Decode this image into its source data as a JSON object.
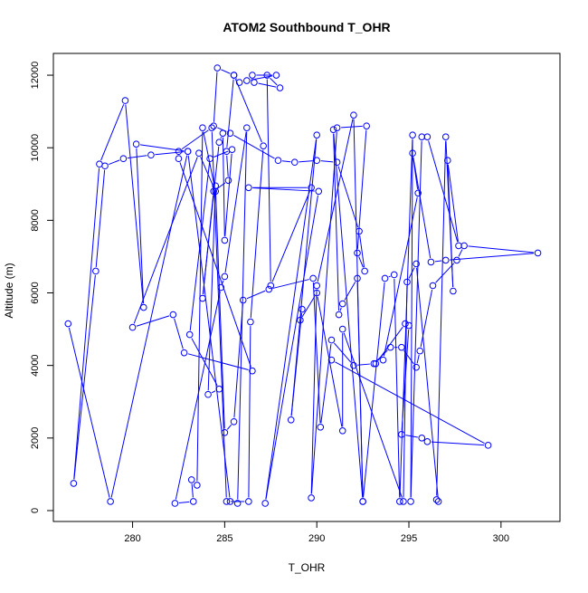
{
  "colors": {
    "series": "#0000ff",
    "axis": "#000000",
    "background": "#ffffff"
  },
  "chart_data": {
    "type": "line",
    "title": "ATOM2 Southbound T_OHR",
    "xlabel": "T_OHR",
    "ylabel": "Altitude (m)",
    "xlim": [
      275.7,
      303.2
    ],
    "ylim": [
      -300,
      12600
    ],
    "xticks": [
      280,
      285,
      290,
      295,
      300
    ],
    "yticks": [
      0,
      2000,
      4000,
      6000,
      8000,
      10000,
      12000
    ],
    "xtick_labels": [
      "280",
      "285",
      "290",
      "295",
      "300"
    ],
    "ytick_labels": [
      "0",
      "2000",
      "4000",
      "6000",
      "8000",
      "10000",
      "12000"
    ],
    "grid": false,
    "markers": "open-circle",
    "series": [
      {
        "x": [
          276.5,
          278.8,
          283.0,
          280.2,
          280.6,
          279.6,
          278.2,
          276.8,
          278.0,
          278.5,
          279.5,
          281.0,
          283.0,
          285.3,
          285.7,
          286.2,
          285.0,
          284.8,
          282.3,
          283.3,
          283.2,
          283.5,
          283.8,
          284.5,
          283.6,
          280.0,
          282.2,
          282.8,
          286.5,
          282.5,
          282.5,
          284.3,
          285.1,
          286.3,
          286.4,
          287.1,
          285.5,
          284.6,
          284.4,
          285.3,
          287.9,
          288.8,
          290.0,
          291.1,
          292.3,
          292.6,
          292.2,
          292.7,
          291.1,
          289.7,
          290.0,
          292.0,
          292.5,
          292.2,
          291.4,
          291.2,
          290.9,
          292.5,
          293.7,
          294.2,
          294.5,
          295.2,
          295.1,
          295.7,
          296.0,
          297.7,
          297.1,
          297.4,
          297.0,
          296.5,
          296.6,
          295.4,
          294.9,
          294.7,
          291.4,
          291.4,
          290.0,
          289.1,
          289.2,
          288.6,
          290.0,
          287.2,
          290.1,
          286.3,
          289.7,
          287.5,
          287.3,
          288.0,
          286.6,
          286.5,
          287.8,
          286.2,
          285.8,
          285.5,
          285.1,
          285.2,
          284.4,
          283.8,
          284.7,
          284.9,
          285.0,
          285.4,
          284.2,
          283.1,
          284.7,
          284.1,
          284.5,
          285.0,
          285.5,
          286.0,
          287.4,
          289.8,
          290.2,
          290.8,
          292.0,
          293.1,
          294.0,
          294.6,
          295.4,
          295.6,
          296.3,
          297.6,
          298.0,
          302.0,
          297.0,
          296.2,
          295.2,
          295.5,
          293.6,
          293.2,
          294.8,
          295.0,
          294.6,
          295.7,
          296.0,
          299.3,
          290.8
        ],
        "y": [
          5150,
          250,
          9900,
          10100,
          5600,
          11300,
          9550,
          750,
          6600,
          9500,
          9700,
          9800,
          9900,
          250,
          200,
          10550,
          6450,
          6150,
          200,
          250,
          850,
          700,
          10550,
          8800,
          9850,
          5050,
          5400,
          4350,
          3850,
          9700,
          9900,
          10550,
          250,
          250,
          5200,
          10050,
          12000,
          12200,
          10600,
          10400,
          9650,
          9600,
          9650,
          9600,
          7700,
          6600,
          7100,
          10600,
          10550,
          350,
          6200,
          10900,
          250,
          6400,
          5700,
          5400,
          10500,
          250,
          6400,
          6500,
          250,
          10350,
          250,
          10300,
          10300,
          7300,
          9650,
          6050,
          10300,
          300,
          250,
          6800,
          6300,
          250,
          5000,
          2200,
          6000,
          5250,
          5550,
          2500,
          10350,
          200,
          8800,
          8900,
          8900,
          6200,
          12000,
          11650,
          11800,
          12000,
          12000,
          11850,
          11800,
          12000,
          9900,
          9100,
          8800,
          5850,
          10150,
          10400,
          7450,
          9950,
          9700,
          4850,
          3350,
          3200,
          8950,
          2150,
          2450,
          5800,
          6100,
          6400,
          2300,
          4700,
          4000,
          4050,
          4500,
          4500,
          3950,
          4400,
          6200,
          6900,
          7300,
          7100,
          6900,
          6850,
          9850,
          8750,
          4150,
          4050,
          5150,
          5100,
          2100,
          2000,
          1900,
          1800,
          4150
        ]
      }
    ]
  }
}
